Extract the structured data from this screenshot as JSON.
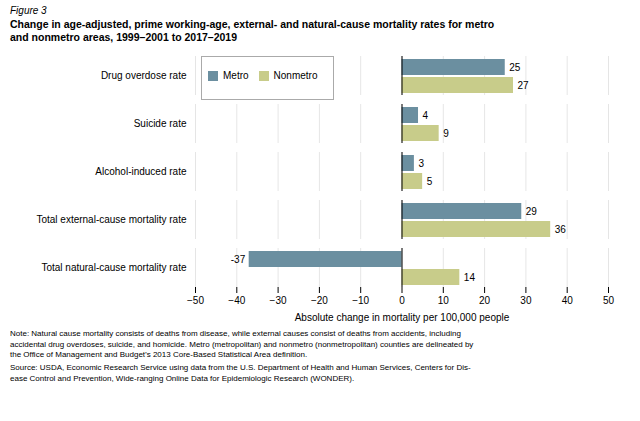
{
  "chart_data": {
    "type": "bar",
    "orientation": "horizontal",
    "title": "Change in age-adjusted, prime working-age, external- and natural-cause mortality rates for metro\nand nonmetro areas, 1999–2001 to 2017–2019",
    "annotations": [
      "Figure 3",
      "Note: Natural cause mortality consists of deaths from disease, while external causes consist of deaths from accidents, including\naccidental drug overdoses, suicide, and homicide. Metro (metropolitan) and nonmetro (nonmetropolitan) counties are delineated by\nthe Office of Management and Budget’s 2013 Core-Based Statistical Area definition.",
      "Source: USDA, Economic Research Service using data from the U.S. Department of Health and Human Services, Centers for Dis-\nease Control and Prevention, Wide-ranging Online Data for Epidemiologic Research (WONDER)."
    ],
    "categories": [
      "Total natural-cause mortality rate",
      "Total external-cause mortality rate",
      "Alcohol-induced rate",
      "Suicide rate",
      "Drug overdose rate"
    ],
    "series": [
      {
        "name": "Metro",
        "color": "#6b8fa0",
        "values": [
          -37,
          29,
          3,
          4,
          25
        ]
      },
      {
        "name": "Nonmetro",
        "color": "#c8cc8a",
        "values": [
          14,
          36,
          5,
          9,
          27
        ]
      }
    ],
    "xlabel": "Absolute change in mortality per 100,000 people",
    "xlim": [
      -50,
      50
    ],
    "xticks": [
      -50,
      -40,
      -30,
      -20,
      -10,
      0,
      10,
      20,
      30,
      40,
      50
    ],
    "grid": true,
    "legend": "upper left",
    "data_labels": true
  }
}
